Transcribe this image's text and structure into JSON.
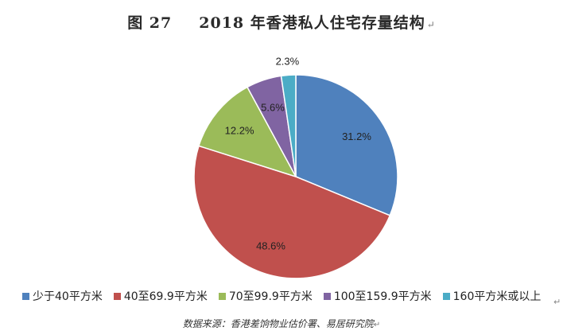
{
  "header": {
    "figure_no": "图 27",
    "title": "2018 年香港私人住宅存量结构",
    "paragraph_mark": "↵"
  },
  "chart_data": {
    "type": "pie",
    "title": "2018 年香港私人住宅存量结构",
    "start": "12 o'clock",
    "direction": "clockwise",
    "legend_position": "bottom",
    "slices": [
      {
        "label": "少于40平方米",
        "value": 31.2,
        "display": "31.2%",
        "color": "#4f81bd"
      },
      {
        "label": "40至69.9平方米",
        "value": 48.6,
        "display": "48.6%",
        "color": "#c0504d"
      },
      {
        "label": "70至99.9平方米",
        "value": 12.2,
        "display": "12.2%",
        "color": "#9bbb59"
      },
      {
        "label": "100至159.9平方米",
        "value": 5.6,
        "display": "5.6%",
        "color": "#8064a2"
      },
      {
        "label": "160平方米或以上",
        "value": 2.3,
        "display": "2.3%",
        "color": "#4bacc6"
      }
    ]
  },
  "footer": {
    "source": "数据来源：香港差饷物业估价署、易居研究院",
    "paragraph_mark": "↵"
  }
}
